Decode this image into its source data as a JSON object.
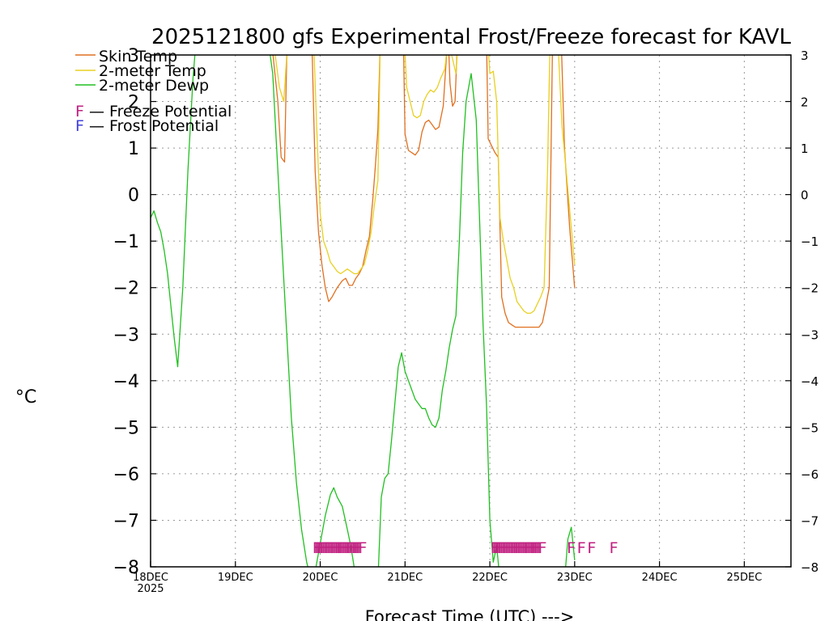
{
  "chart_data": {
    "type": "line",
    "title": "2025121800 gfs Experimental Frost/Freeze forecast for KAVL",
    "xlabel": "Forecast Time (UTC) --->",
    "ylabel": "°C",
    "ylim": [
      -8,
      3
    ],
    "xlim": [
      0,
      7.55
    ],
    "yticks": [
      -8,
      -7,
      -6,
      -5,
      -4,
      -3,
      -2,
      -1,
      0,
      1,
      2,
      3
    ],
    "yticklabels": [
      "−8",
      "−7",
      "−6",
      "−5",
      "−4",
      "−3",
      "−2",
      "−1",
      "0",
      "1",
      "2",
      "3"
    ],
    "xticks": [
      0,
      1,
      2,
      3,
      4,
      5,
      6,
      7
    ],
    "xticklabels": [
      "18DEC",
      "19DEC",
      "20DEC",
      "21DEC",
      "22DEC",
      "23DEC",
      "24DEC",
      "25DEC"
    ],
    "year_label": "2025",
    "x_unit": "days since 2025-12-18 00 UTC",
    "grid": true,
    "legend_position": "top-left",
    "legend": [
      {
        "label": "Skin Temp",
        "color": "#e07020"
      },
      {
        "label": "2-meter Temp",
        "color": "#e8d020"
      },
      {
        "label": "2-meter Dewp",
        "color": "#20c020"
      }
    ],
    "potential_legend": [
      {
        "symbol": "F",
        "text": " — Freeze Potential",
        "color": "#c02080"
      },
      {
        "symbol": "F",
        "text": " — Frost Potential",
        "color": "#4040e0"
      }
    ],
    "series": [
      {
        "name": "Skin Temp",
        "color": "#e07020",
        "x": [
          1.42,
          1.5,
          1.54,
          1.58,
          1.61,
          1.9,
          1.94,
          1.98,
          2.02,
          2.06,
          2.1,
          2.14,
          2.2,
          2.26,
          2.3,
          2.34,
          2.38,
          2.42,
          2.46,
          2.5,
          2.54,
          2.58,
          2.62,
          2.65,
          2.68,
          2.71,
          2.98,
          3.0,
          3.04,
          3.08,
          3.12,
          3.16,
          3.2,
          3.24,
          3.28,
          3.32,
          3.36,
          3.4,
          3.45,
          3.49,
          3.51,
          3.53,
          3.56,
          3.59,
          3.62,
          3.96,
          3.98,
          4.02,
          4.06,
          4.1,
          4.14,
          4.18,
          4.22,
          4.26,
          4.3,
          4.34,
          4.38,
          4.42,
          4.46,
          4.5,
          4.54,
          4.58,
          4.62,
          4.66,
          4.7,
          4.74,
          4.84,
          4.88,
          4.94,
          5.0
        ],
        "y": [
          3.4,
          2.0,
          0.8,
          0.7,
          3.4,
          3.4,
          0.5,
          -0.8,
          -1.5,
          -2.0,
          -2.3,
          -2.2,
          -2.0,
          -1.85,
          -1.8,
          -1.95,
          -1.95,
          -1.8,
          -1.7,
          -1.55,
          -1.2,
          -0.9,
          -0.1,
          0.6,
          1.4,
          3.4,
          3.4,
          1.3,
          0.95,
          0.9,
          0.85,
          0.95,
          1.35,
          1.55,
          1.6,
          1.5,
          1.4,
          1.45,
          1.9,
          3.0,
          3.4,
          2.4,
          1.9,
          2.0,
          3.4,
          3.4,
          1.2,
          1.05,
          0.9,
          0.8,
          -2.2,
          -2.55,
          -2.75,
          -2.8,
          -2.85,
          -2.85,
          -2.85,
          -2.85,
          -2.85,
          -2.85,
          -2.85,
          -2.85,
          -2.75,
          -2.4,
          -2.0,
          3.4,
          3.4,
          1.0,
          -0.7,
          -2.0
        ]
      },
      {
        "name": "2-meter Temp",
        "color": "#e8d020",
        "x": [
          1.44,
          1.52,
          1.57,
          1.62,
          1.92,
          1.96,
          2.0,
          2.04,
          2.08,
          2.12,
          2.16,
          2.2,
          2.24,
          2.28,
          2.32,
          2.36,
          2.4,
          2.44,
          2.48,
          2.52,
          2.56,
          2.6,
          2.64,
          2.68,
          2.71,
          2.99,
          3.02,
          3.06,
          3.1,
          3.14,
          3.18,
          3.22,
          3.26,
          3.3,
          3.34,
          3.38,
          3.42,
          3.47,
          3.51,
          3.55,
          3.6,
          3.63,
          3.97,
          4.0,
          4.04,
          4.08,
          4.12,
          4.16,
          4.2,
          4.24,
          4.28,
          4.32,
          4.36,
          4.4,
          4.44,
          4.48,
          4.52,
          4.56,
          4.6,
          4.64,
          4.68,
          4.71,
          4.8,
          4.85,
          4.9,
          4.95,
          5.0
        ],
        "y": [
          3.4,
          2.3,
          2.0,
          3.4,
          3.4,
          1.4,
          -0.4,
          -1.0,
          -1.2,
          -1.45,
          -1.55,
          -1.65,
          -1.7,
          -1.65,
          -1.6,
          -1.65,
          -1.7,
          -1.7,
          -1.6,
          -1.5,
          -1.2,
          -0.8,
          -0.2,
          0.3,
          3.4,
          3.4,
          2.3,
          2.0,
          1.7,
          1.65,
          1.7,
          2.0,
          2.15,
          2.25,
          2.2,
          2.3,
          2.5,
          2.7,
          3.4,
          3.0,
          2.6,
          3.4,
          3.4,
          2.6,
          2.65,
          2.0,
          -0.5,
          -1.0,
          -1.4,
          -1.8,
          -2.0,
          -2.3,
          -2.4,
          -2.5,
          -2.55,
          -2.55,
          -2.5,
          -2.35,
          -2.2,
          -2.0,
          0.5,
          3.4,
          3.4,
          1.5,
          0.5,
          -0.5,
          -1.5
        ]
      },
      {
        "name": "2-meter Dewp",
        "color": "#20c020",
        "x": [
          0.0,
          0.04,
          0.08,
          0.12,
          0.16,
          0.2,
          0.24,
          0.28,
          0.32,
          0.38,
          0.44,
          0.5,
          0.54,
          0.56,
          1.38,
          1.44,
          1.48,
          1.54,
          1.6,
          1.66,
          1.72,
          1.78,
          1.84,
          1.88,
          1.9,
          1.94,
          2.0,
          2.06,
          2.12,
          2.16,
          2.2,
          2.26,
          2.32,
          2.36,
          2.4,
          2.44,
          2.52,
          2.58,
          2.64,
          2.68,
          2.72,
          2.76,
          2.8,
          2.84,
          2.88,
          2.92,
          2.96,
          3.0,
          3.04,
          3.08,
          3.12,
          3.16,
          3.2,
          3.24,
          3.28,
          3.32,
          3.36,
          3.4,
          3.44,
          3.48,
          3.52,
          3.56,
          3.6,
          3.64,
          3.68,
          3.72,
          3.78,
          3.84,
          3.88,
          3.92,
          3.96,
          4.0,
          4.04,
          4.08,
          4.12,
          4.16,
          4.2,
          4.24,
          4.28,
          4.32,
          4.36,
          4.4,
          4.44,
          4.48,
          4.52,
          4.56,
          4.6,
          4.64,
          4.68,
          4.72,
          4.76,
          4.8,
          4.84,
          4.88,
          4.92,
          4.96,
          5.0
        ],
        "y": [
          -0.5,
          -0.35,
          -0.6,
          -0.8,
          -1.2,
          -1.7,
          -2.4,
          -3.1,
          -3.7,
          -2.0,
          0.5,
          2.5,
          3.4,
          3.4,
          3.4,
          2.6,
          1.2,
          -0.8,
          -2.8,
          -4.8,
          -6.2,
          -7.2,
          -7.9,
          -8.2,
          -8.3,
          -8.1,
          -7.5,
          -6.9,
          -6.45,
          -6.3,
          -6.5,
          -6.7,
          -7.2,
          -7.55,
          -8.0,
          -8.3,
          -8.3,
          -8.3,
          -8.3,
          -8.3,
          -6.5,
          -6.1,
          -6.0,
          -5.3,
          -4.5,
          -3.7,
          -3.4,
          -3.8,
          -4.0,
          -4.2,
          -4.4,
          -4.5,
          -4.6,
          -4.6,
          -4.8,
          -4.95,
          -5.0,
          -4.8,
          -4.2,
          -3.8,
          -3.3,
          -2.9,
          -2.6,
          -1.0,
          0.9,
          2.0,
          2.6,
          1.6,
          -0.6,
          -2.8,
          -4.5,
          -7.0,
          -7.9,
          -7.55,
          -8.3,
          -8.3,
          -8.3,
          -8.3,
          -8.3,
          -8.3,
          -8.3,
          -8.3,
          -8.3,
          -8.3,
          -8.3,
          -8.3,
          -8.3,
          -8.3,
          -8.3,
          -8.3,
          -8.3,
          -8.3,
          -8.3,
          -8.3,
          -7.4,
          -7.15,
          -7.85
        ]
      }
    ],
    "freeze_markers": {
      "label": "F",
      "color": "#c02080",
      "y": -7.55,
      "x": [
        1.96,
        1.98,
        2.0,
        2.02,
        2.04,
        2.06,
        2.08,
        2.1,
        2.12,
        2.14,
        2.16,
        2.18,
        2.2,
        2.22,
        2.24,
        2.26,
        2.28,
        2.3,
        2.32,
        2.34,
        2.36,
        2.38,
        2.4,
        2.42,
        2.44,
        2.46,
        2.48,
        2.5,
        4.06,
        4.08,
        4.1,
        4.12,
        4.14,
        4.16,
        4.18,
        4.2,
        4.22,
        4.24,
        4.26,
        4.28,
        4.3,
        4.32,
        4.34,
        4.36,
        4.38,
        4.4,
        4.42,
        4.44,
        4.46,
        4.48,
        4.5,
        4.52,
        4.54,
        4.56,
        4.58,
        4.6,
        4.62,
        4.96,
        5.08,
        5.2,
        5.46
      ]
    }
  }
}
